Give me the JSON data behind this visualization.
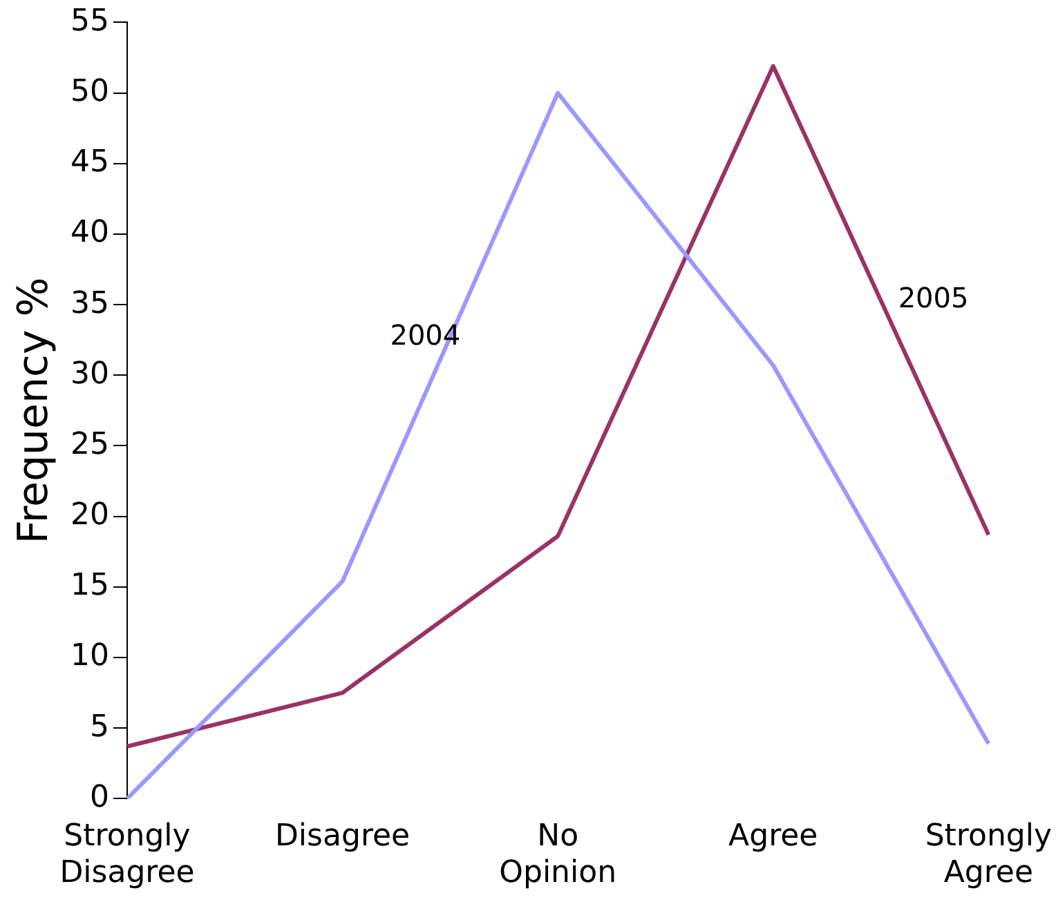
{
  "chart_data": {
    "type": "line",
    "ylabel": "Frequency %",
    "categories": [
      "Strongly Disagree",
      "Disagree",
      "No Opinion",
      "Agree",
      "Strongly Agree"
    ],
    "series": [
      {
        "name": "2004",
        "color": "#9999ff",
        "values": [
          0,
          15.4,
          50,
          30.7,
          3.9
        ]
      },
      {
        "name": "2005",
        "color": "#993366",
        "values": [
          3.7,
          7.5,
          18.6,
          51.9,
          18.7
        ]
      }
    ],
    "ylim": [
      0,
      55
    ],
    "yticks": [
      0,
      5,
      10,
      15,
      20,
      25,
      30,
      35,
      40,
      45,
      50,
      55
    ],
    "grid": false,
    "legend": false,
    "marker": "none",
    "line_style": "solid"
  }
}
